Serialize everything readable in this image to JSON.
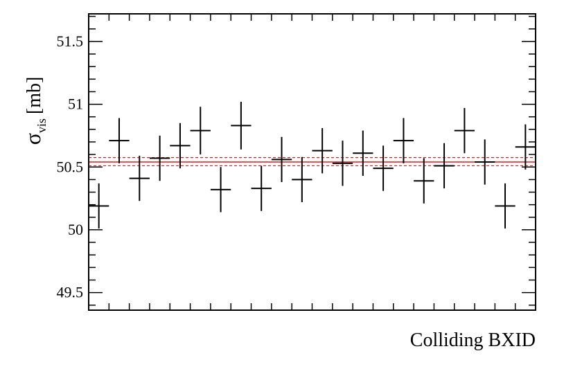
{
  "chart_data": {
    "type": "scatter",
    "xlabel": "Colliding BXID",
    "ylabel": {
      "main": "σ",
      "sub": "vis",
      "unit": "[mb]"
    },
    "ylim": [
      49.36,
      51.72
    ],
    "y_ticks": [
      49.5,
      50,
      50.5,
      51,
      51.5
    ],
    "y_tick_labels": [
      "49.5",
      "50",
      "50.5",
      "51",
      "51.5"
    ],
    "grid": false,
    "series": [
      {
        "points": [
          {
            "x": 1,
            "y": 50.19,
            "err": 0.18
          },
          {
            "x": 2,
            "y": 50.71,
            "err": 0.18
          },
          {
            "x": 3,
            "y": 50.41,
            "err": 0.18
          },
          {
            "x": 4,
            "y": 50.57,
            "err": 0.18
          },
          {
            "x": 5,
            "y": 50.67,
            "err": 0.18
          },
          {
            "x": 6,
            "y": 50.79,
            "err": 0.19
          },
          {
            "x": 7,
            "y": 50.32,
            "err": 0.18
          },
          {
            "x": 8,
            "y": 50.83,
            "err": 0.19
          },
          {
            "x": 9,
            "y": 50.33,
            "err": 0.18
          },
          {
            "x": 10,
            "y": 50.56,
            "err": 0.18
          },
          {
            "x": 11,
            "y": 50.4,
            "err": 0.18
          },
          {
            "x": 12,
            "y": 50.63,
            "err": 0.18
          },
          {
            "x": 13,
            "y": 50.53,
            "err": 0.18
          },
          {
            "x": 14,
            "y": 50.61,
            "err": 0.18
          },
          {
            "x": 15,
            "y": 50.49,
            "err": 0.18
          },
          {
            "x": 16,
            "y": 50.71,
            "err": 0.18
          },
          {
            "x": 17,
            "y": 50.39,
            "err": 0.18
          },
          {
            "x": 18,
            "y": 50.51,
            "err": 0.18
          },
          {
            "x": 19,
            "y": 50.79,
            "err": 0.18
          },
          {
            "x": 20,
            "y": 50.54,
            "err": 0.18
          },
          {
            "x": 21,
            "y": 50.19,
            "err": 0.18
          },
          {
            "x": 22,
            "y": 50.66,
            "err": 0.18
          }
        ]
      }
    ],
    "average": {
      "value": 50.54,
      "band": [
        50.51,
        50.575
      ],
      "color": "#e41a1c"
    }
  }
}
